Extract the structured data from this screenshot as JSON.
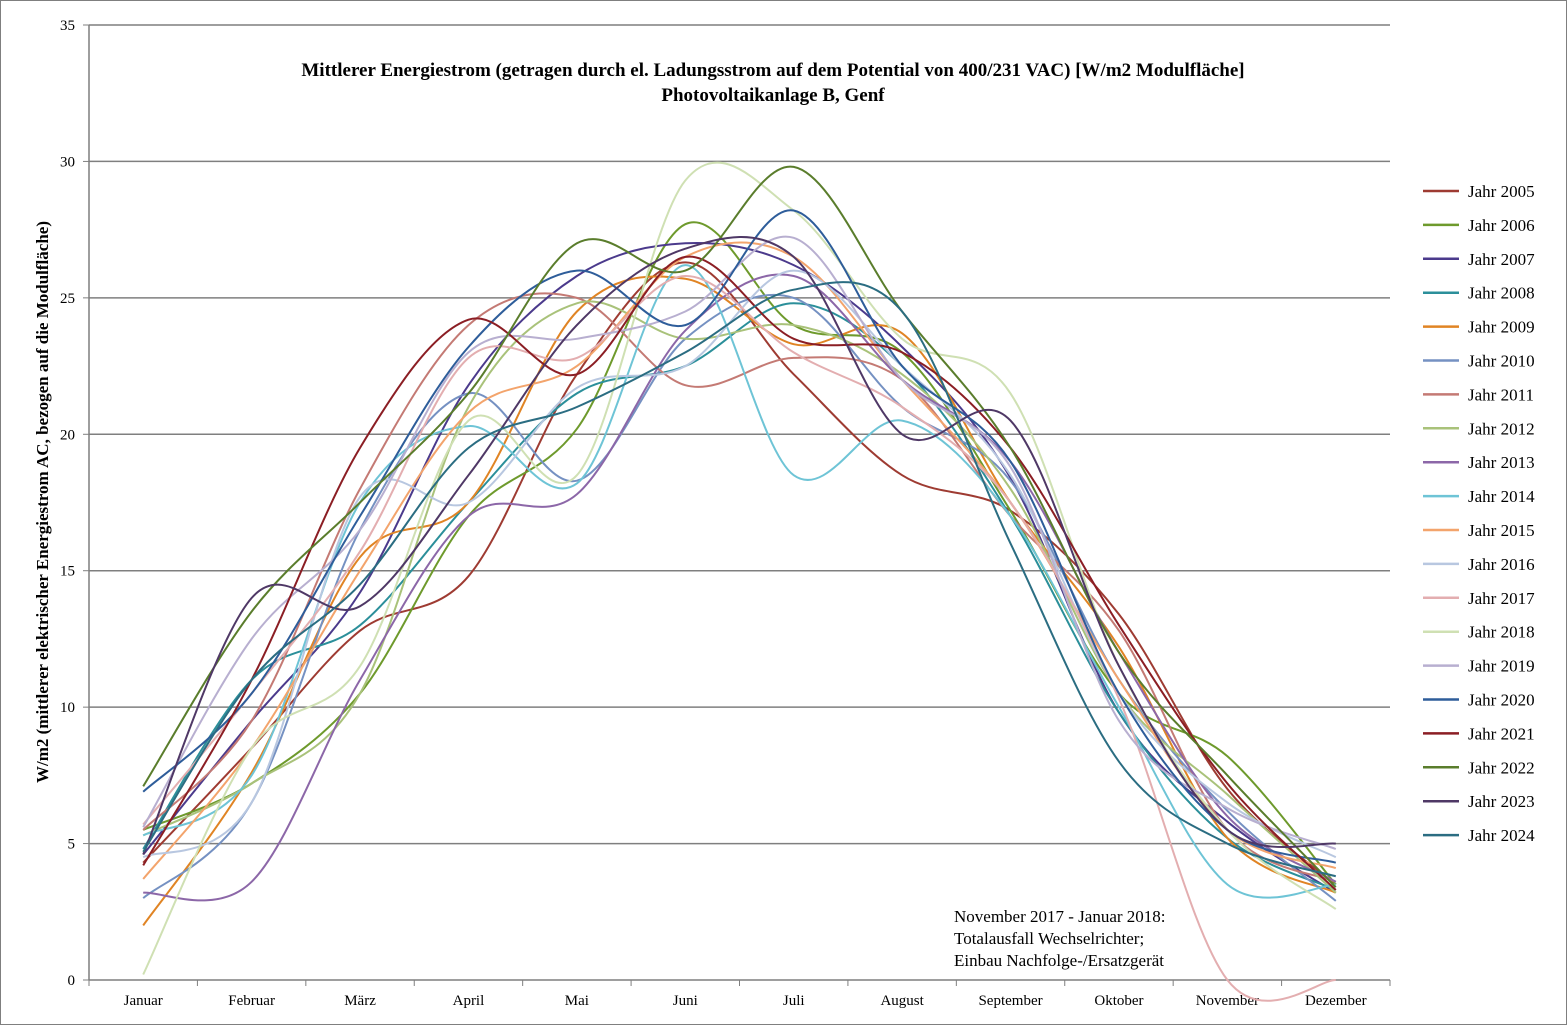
{
  "chart_data": {
    "type": "line",
    "title": "Mittlerer Energiestrom (getragen durch el. Ladungsstrom auf dem Potential von 400/231 VAC) [W/m2 Modulfläche]",
    "subtitle": "Photovoltaikanlage B, Genf",
    "ylabel": "W/m2 (mittlerer elektrischer Energiestrom AC, bezogen auf die Modulfläche)",
    "xlabel": "",
    "ylim": [
      0,
      35
    ],
    "yticks": [
      "0",
      "5",
      "10",
      "15",
      "20",
      "25",
      "30",
      "35"
    ],
    "categories": [
      "Januar",
      "Februar",
      "März",
      "April",
      "Mai",
      "Juni",
      "Juli",
      "August",
      "September",
      "Oktober",
      "November",
      "Dezember"
    ],
    "grid": true,
    "legend_position": "right",
    "annotation": [
      "November 2017 - Januar 2018:",
      "Totalausfall Wechselrichter;",
      "Einbau Nachfolge-/Ersatzgerät"
    ],
    "series": [
      {
        "name": "Jahr 2005",
        "color": "#9e3b32",
        "values": [
          4.3,
          8.5,
          12.8,
          14.8,
          22.2,
          26.3,
          22.2,
          18.5,
          17.2,
          13.4,
          7.0,
          3.5
        ]
      },
      {
        "name": "Jahr 2006",
        "color": "#6e9a2c",
        "values": [
          5.5,
          7.2,
          10.5,
          17.0,
          20.2,
          27.7,
          24.0,
          23.0,
          17.2,
          10.5,
          8.2,
          3.5
        ]
      },
      {
        "name": "Jahr 2007",
        "color": "#4b3a8c",
        "values": [
          4.6,
          9.5,
          14.2,
          21.8,
          25.8,
          27.0,
          26.2,
          23.2,
          18.4,
          9.8,
          5.8,
          3.2
        ]
      },
      {
        "name": "Jahr 2008",
        "color": "#2b8f9a",
        "values": [
          4.8,
          11.0,
          13.0,
          17.5,
          21.5,
          22.5,
          24.8,
          22.5,
          17.0,
          9.8,
          5.2,
          3.3
        ]
      },
      {
        "name": "Jahr 2009",
        "color": "#e08424",
        "values": [
          2.0,
          7.6,
          15.5,
          17.5,
          24.5,
          25.7,
          23.3,
          23.7,
          17.5,
          12.2,
          5.2,
          3.2
        ]
      },
      {
        "name": "Jahr 2010",
        "color": "#7591c2",
        "values": [
          3.0,
          6.5,
          16.5,
          21.5,
          18.3,
          23.5,
          25.0,
          21.0,
          18.3,
          11.0,
          6.2,
          2.9
        ]
      },
      {
        "name": "Jahr 2011",
        "color": "#c47a74",
        "values": [
          5.5,
          9.5,
          18.0,
          24.0,
          25.0,
          21.8,
          22.8,
          22.0,
          17.0,
          12.8,
          5.5,
          3.6
        ]
      },
      {
        "name": "Jahr 2012",
        "color": "#a9c27a",
        "values": [
          5.3,
          7.2,
          10.5,
          21.0,
          24.8,
          23.5,
          24.0,
          22.2,
          18.0,
          10.5,
          6.8,
          3.2
        ]
      },
      {
        "name": "Jahr 2013",
        "color": "#8c67a8",
        "values": [
          3.2,
          3.6,
          11.0,
          17.0,
          17.8,
          23.8,
          25.8,
          22.0,
          19.0,
          12.0,
          6.0,
          3.6
        ]
      },
      {
        "name": "Jahr 2014",
        "color": "#6ec4d6",
        "values": [
          5.3,
          7.5,
          17.5,
          20.3,
          18.2,
          26.2,
          18.5,
          20.5,
          17.0,
          10.0,
          3.5,
          3.5
        ]
      },
      {
        "name": "Jahr 2015",
        "color": "#f3a46c",
        "values": [
          3.7,
          8.5,
          15.0,
          20.8,
          22.5,
          26.5,
          26.5,
          22.0,
          17.5,
          11.0,
          5.5,
          4.1
        ]
      },
      {
        "name": "Jahr 2016",
        "color": "#b8c7e0",
        "values": [
          4.5,
          6.5,
          17.7,
          17.5,
          21.7,
          22.5,
          26.0,
          22.5,
          18.5,
          10.5,
          6.5,
          4.5
        ]
      },
      {
        "name": "Jahr 2017",
        "color": "#e3aeb0",
        "values": [
          5.7,
          10.5,
          15.7,
          22.8,
          22.8,
          25.8,
          23.0,
          21.0,
          17.5,
          10.3,
          0.0,
          0.0
        ]
      },
      {
        "name": "Jahr 2018",
        "color": "#cfe0b3",
        "values": [
          0.2,
          8.5,
          11.5,
          20.5,
          18.5,
          29.3,
          28.2,
          23.5,
          21.5,
          11.5,
          5.5,
          2.6
        ]
      },
      {
        "name": "Jahr 2019",
        "color": "#b8afd0",
        "values": [
          5.6,
          12.5,
          16.5,
          23.0,
          23.5,
          24.5,
          27.2,
          22.0,
          18.8,
          9.5,
          6.3,
          4.8
        ]
      },
      {
        "name": "Jahr 2020",
        "color": "#2e5d9a",
        "values": [
          6.9,
          10.5,
          17.0,
          23.2,
          26.0,
          24.0,
          28.2,
          22.5,
          19.0,
          10.5,
          5.5,
          4.3
        ]
      },
      {
        "name": "Jahr 2021",
        "color": "#8b1e24",
        "values": [
          4.2,
          11.0,
          19.5,
          24.2,
          22.2,
          26.5,
          23.5,
          23.0,
          19.5,
          13.0,
          7.2,
          3.3
        ]
      },
      {
        "name": "Jahr 2022",
        "color": "#5a7d2c",
        "values": [
          7.1,
          13.5,
          17.5,
          21.5,
          27.0,
          26.0,
          29.8,
          24.5,
          19.5,
          12.0,
          7.5,
          3.4
        ]
      },
      {
        "name": "Jahr 2023",
        "color": "#4f3866",
        "values": [
          4.6,
          14.0,
          13.7,
          18.5,
          24.0,
          26.8,
          26.5,
          20.0,
          20.5,
          11.5,
          5.5,
          5.0
        ]
      },
      {
        "name": "Jahr 2024",
        "color": "#2b6d82",
        "values": [
          4.7,
          11.0,
          14.5,
          19.5,
          21.0,
          23.0,
          25.3,
          24.5,
          16.0,
          8.0,
          5.0,
          3.8
        ]
      }
    ]
  }
}
